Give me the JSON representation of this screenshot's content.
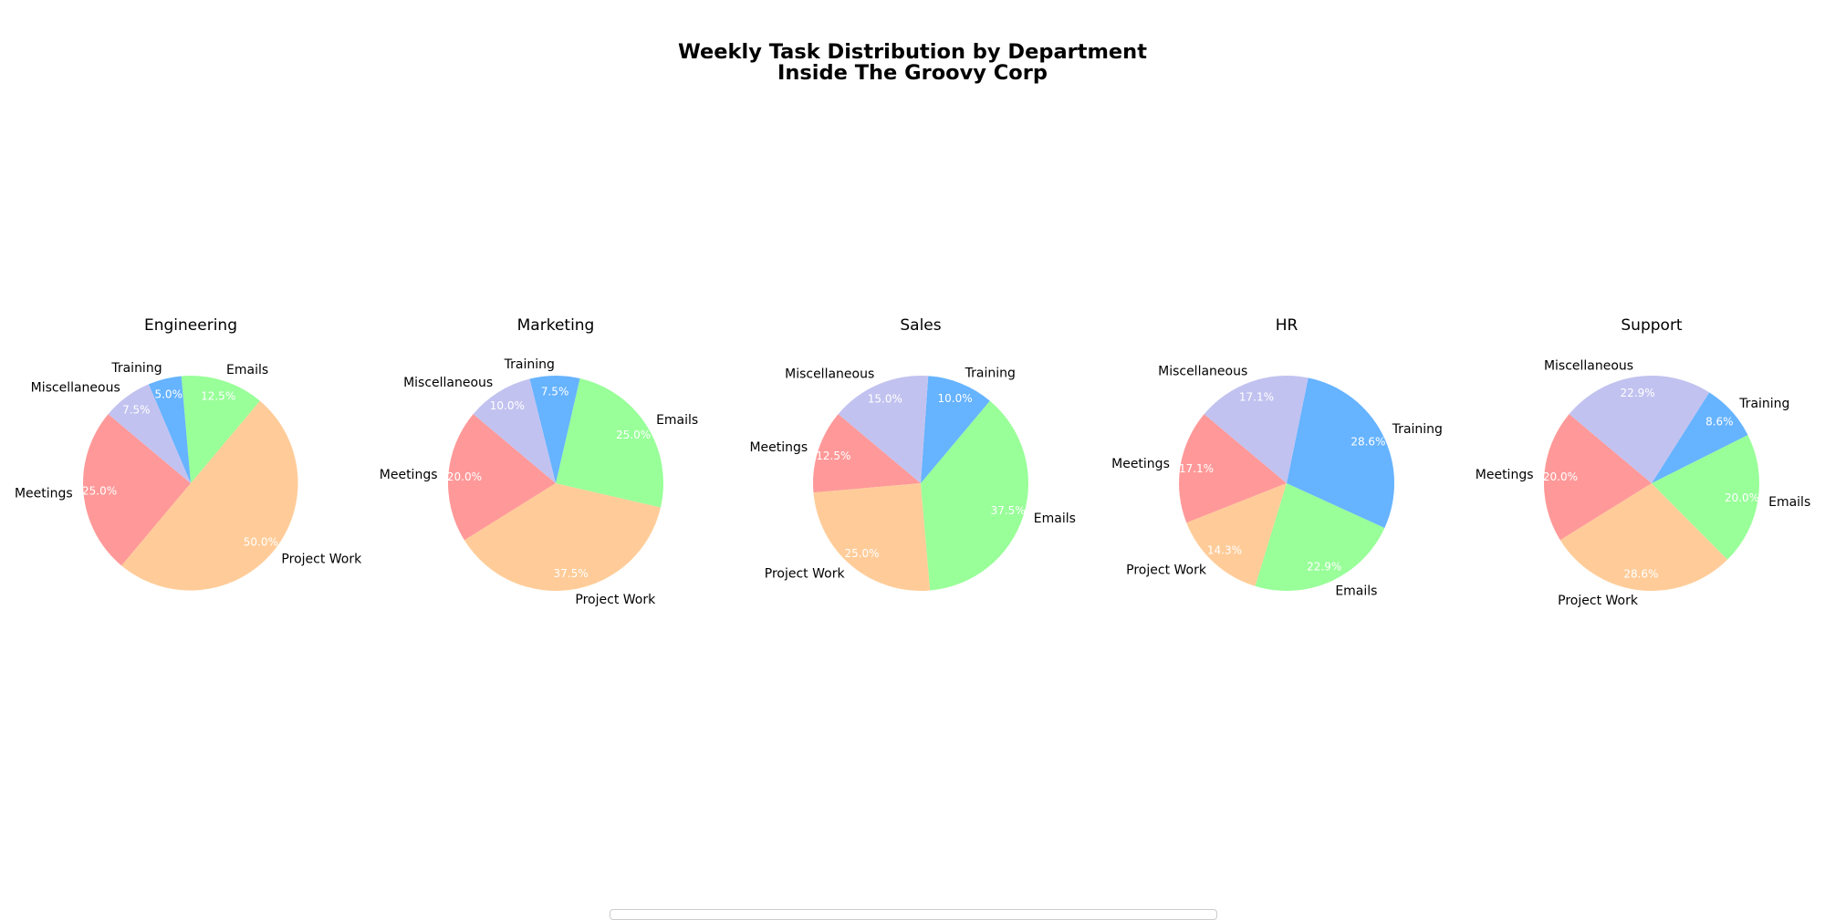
{
  "title_line1": "Weekly Task Distribution by Department",
  "title_line2": "Inside The Groovy Corp",
  "colors": {
    "Meetings": "#ff9999",
    "Project Work": "#ffcc99",
    "Emails": "#99ff99",
    "Training": "#66b3ff",
    "Miscellaneous": "#c2c2f0"
  },
  "chart_data": [
    {
      "type": "pie",
      "title": "Engineering",
      "slices": [
        {
          "label": "Meetings",
          "value": 25.0,
          "pct": "25.0%"
        },
        {
          "label": "Project Work",
          "value": 50.0,
          "pct": "50.0%"
        },
        {
          "label": "Emails",
          "value": 12.5,
          "pct": "12.5%"
        },
        {
          "label": "Training",
          "value": 5.0,
          "pct": "5.0%"
        },
        {
          "label": "Miscellaneous",
          "value": 7.5,
          "pct": "7.5%"
        }
      ]
    },
    {
      "type": "pie",
      "title": "Marketing",
      "slices": [
        {
          "label": "Meetings",
          "value": 20.0,
          "pct": "20.0%"
        },
        {
          "label": "Project Work",
          "value": 37.5,
          "pct": "37.5%"
        },
        {
          "label": "Emails",
          "value": 25.0,
          "pct": "25.0%"
        },
        {
          "label": "Training",
          "value": 7.5,
          "pct": "7.5%"
        },
        {
          "label": "Miscellaneous",
          "value": 10.0,
          "pct": "10.0%"
        }
      ]
    },
    {
      "type": "pie",
      "title": "Sales",
      "slices": [
        {
          "label": "Meetings",
          "value": 12.5,
          "pct": "12.5%"
        },
        {
          "label": "Project Work",
          "value": 25.0,
          "pct": "25.0%"
        },
        {
          "label": "Emails",
          "value": 37.5,
          "pct": "37.5%"
        },
        {
          "label": "Training",
          "value": 10.0,
          "pct": "10.0%"
        },
        {
          "label": "Miscellaneous",
          "value": 15.0,
          "pct": "15.0%"
        }
      ]
    },
    {
      "type": "pie",
      "title": "HR",
      "slices": [
        {
          "label": "Meetings",
          "value": 17.1,
          "pct": "17.1%"
        },
        {
          "label": "Project Work",
          "value": 14.3,
          "pct": "14.3%"
        },
        {
          "label": "Emails",
          "value": 22.9,
          "pct": "22.9%"
        },
        {
          "label": "Training",
          "value": 28.6,
          "pct": "28.6%"
        },
        {
          "label": "Miscellaneous",
          "value": 17.1,
          "pct": "17.1%"
        }
      ]
    },
    {
      "type": "pie",
      "title": "Support",
      "slices": [
        {
          "label": "Meetings",
          "value": 20.0,
          "pct": "20.0%"
        },
        {
          "label": "Project Work",
          "value": 28.6,
          "pct": "28.6%"
        },
        {
          "label": "Emails",
          "value": 20.0,
          "pct": "20.0%"
        },
        {
          "label": "Training",
          "value": 8.6,
          "pct": "8.6%"
        },
        {
          "label": "Miscellaneous",
          "value": 22.9,
          "pct": "22.9%"
        }
      ]
    }
  ]
}
